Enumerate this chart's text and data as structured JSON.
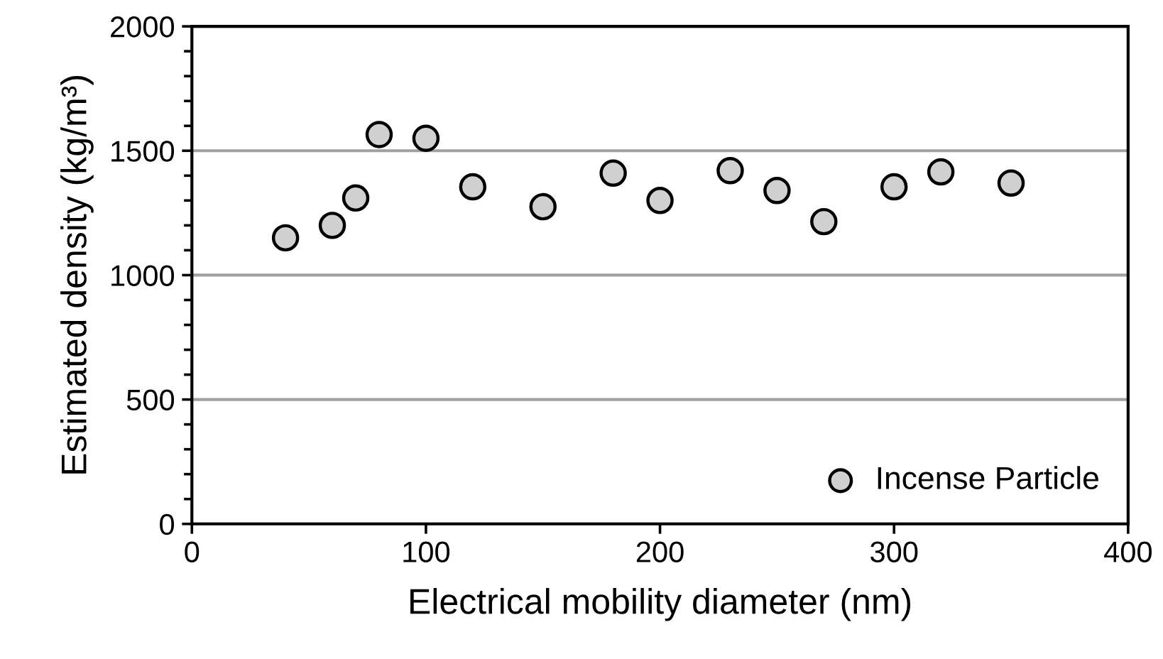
{
  "chart_data": {
    "type": "scatter",
    "xlabel": "Electrical mobility diameter (nm)",
    "ylabel": "Estimated density (kg/m³)",
    "xlim": [
      0,
      400
    ],
    "xticks": [
      0,
      100,
      200,
      300,
      400
    ],
    "ylim": [
      0,
      2000
    ],
    "yticks": [
      0,
      500,
      1000,
      1500,
      2000
    ],
    "grid": "y",
    "legend": "bottom right",
    "marker": "circle",
    "series": [
      {
        "name": "Incense Particle",
        "color": "#d0d0d0",
        "x": [
          40,
          60,
          70,
          80,
          100,
          120,
          150,
          180,
          200,
          230,
          250,
          270,
          300,
          320,
          350
        ],
        "values": [
          1150,
          1200,
          1310,
          1565,
          1550,
          1355,
          1275,
          1410,
          1300,
          1420,
          1340,
          1215,
          1355,
          1415,
          1370
        ]
      }
    ]
  }
}
